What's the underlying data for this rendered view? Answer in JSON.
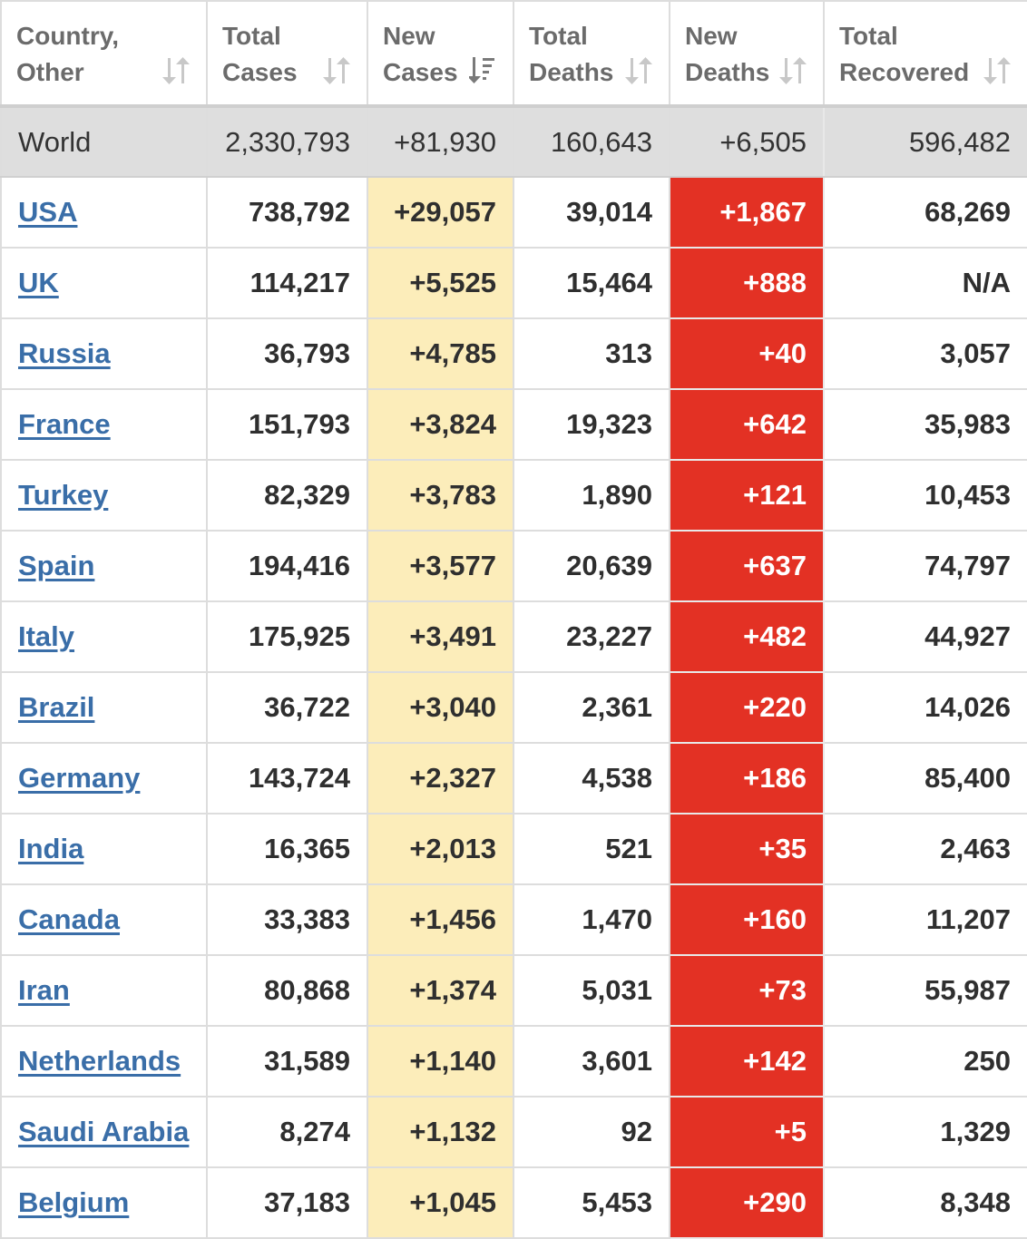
{
  "columns": [
    {
      "label": "Country, Other",
      "line1": "Country,",
      "line2": "Other",
      "sort_icon": "sort-updown-icon"
    },
    {
      "label": "Total Cases",
      "line1": "Total",
      "line2": "Cases",
      "sort_icon": "sort-updown-icon"
    },
    {
      "label": "New Cases",
      "line1": "New",
      "line2": "Cases",
      "sort_icon": "sort-desc-active-icon"
    },
    {
      "label": "Total Deaths",
      "line1": "Total",
      "line2": "Deaths",
      "sort_icon": "sort-updown-icon"
    },
    {
      "label": "New Deaths",
      "line1": "New",
      "line2": "Deaths",
      "sort_icon": "sort-updown-icon"
    },
    {
      "label": "Total Recovered",
      "line1": "Total",
      "line2": "Recovered",
      "sort_icon": "sort-updown-icon"
    }
  ],
  "world": {
    "country": "World",
    "total_cases": "2,330,793",
    "new_cases": "+81,930",
    "total_deaths": "160,643",
    "new_deaths": "+6,505",
    "total_recovered": "596,482"
  },
  "rows": [
    {
      "country": "USA",
      "total_cases": "738,792",
      "new_cases": "+29,057",
      "total_deaths": "39,014",
      "new_deaths": "+1,867",
      "total_recovered": "68,269"
    },
    {
      "country": "UK",
      "total_cases": "114,217",
      "new_cases": "+5,525",
      "total_deaths": "15,464",
      "new_deaths": "+888",
      "total_recovered": "N/A"
    },
    {
      "country": "Russia",
      "total_cases": "36,793",
      "new_cases": "+4,785",
      "total_deaths": "313",
      "new_deaths": "+40",
      "total_recovered": "3,057"
    },
    {
      "country": "France",
      "total_cases": "151,793",
      "new_cases": "+3,824",
      "total_deaths": "19,323",
      "new_deaths": "+642",
      "total_recovered": "35,983"
    },
    {
      "country": "Turkey",
      "total_cases": "82,329",
      "new_cases": "+3,783",
      "total_deaths": "1,890",
      "new_deaths": "+121",
      "total_recovered": "10,453"
    },
    {
      "country": "Spain",
      "total_cases": "194,416",
      "new_cases": "+3,577",
      "total_deaths": "20,639",
      "new_deaths": "+637",
      "total_recovered": "74,797"
    },
    {
      "country": "Italy",
      "total_cases": "175,925",
      "new_cases": "+3,491",
      "total_deaths": "23,227",
      "new_deaths": "+482",
      "total_recovered": "44,927"
    },
    {
      "country": "Brazil",
      "total_cases": "36,722",
      "new_cases": "+3,040",
      "total_deaths": "2,361",
      "new_deaths": "+220",
      "total_recovered": "14,026"
    },
    {
      "country": "Germany",
      "total_cases": "143,724",
      "new_cases": "+2,327",
      "total_deaths": "4,538",
      "new_deaths": "+186",
      "total_recovered": "85,400"
    },
    {
      "country": "India",
      "total_cases": "16,365",
      "new_cases": "+2,013",
      "total_deaths": "521",
      "new_deaths": "+35",
      "total_recovered": "2,463"
    },
    {
      "country": "Canada",
      "total_cases": "33,383",
      "new_cases": "+1,456",
      "total_deaths": "1,470",
      "new_deaths": "+160",
      "total_recovered": "11,207"
    },
    {
      "country": "Iran",
      "total_cases": "80,868",
      "new_cases": "+1,374",
      "total_deaths": "5,031",
      "new_deaths": "+73",
      "total_recovered": "55,987"
    },
    {
      "country": "Netherlands",
      "total_cases": "31,589",
      "new_cases": "+1,140",
      "total_deaths": "3,601",
      "new_deaths": "+142",
      "total_recovered": "250"
    },
    {
      "country": "Saudi Arabia",
      "total_cases": "8,274",
      "new_cases": "+1,132",
      "total_deaths": "92",
      "new_deaths": "+5",
      "total_recovered": "1,329"
    },
    {
      "country": "Belgium",
      "total_cases": "37,183",
      "new_cases": "+1,045",
      "total_deaths": "5,453",
      "new_deaths": "+290",
      "total_recovered": "8,348"
    }
  ],
  "colors": {
    "header_text": "#6b6b6b",
    "world_row_bg": "#dedede",
    "new_cases_bg": "#fcedba",
    "new_deaths_bg": "#e33124",
    "link": "#3a6ea8",
    "sort_icon": "#c8c8c8",
    "sort_icon_active": "#7a7a7a"
  }
}
